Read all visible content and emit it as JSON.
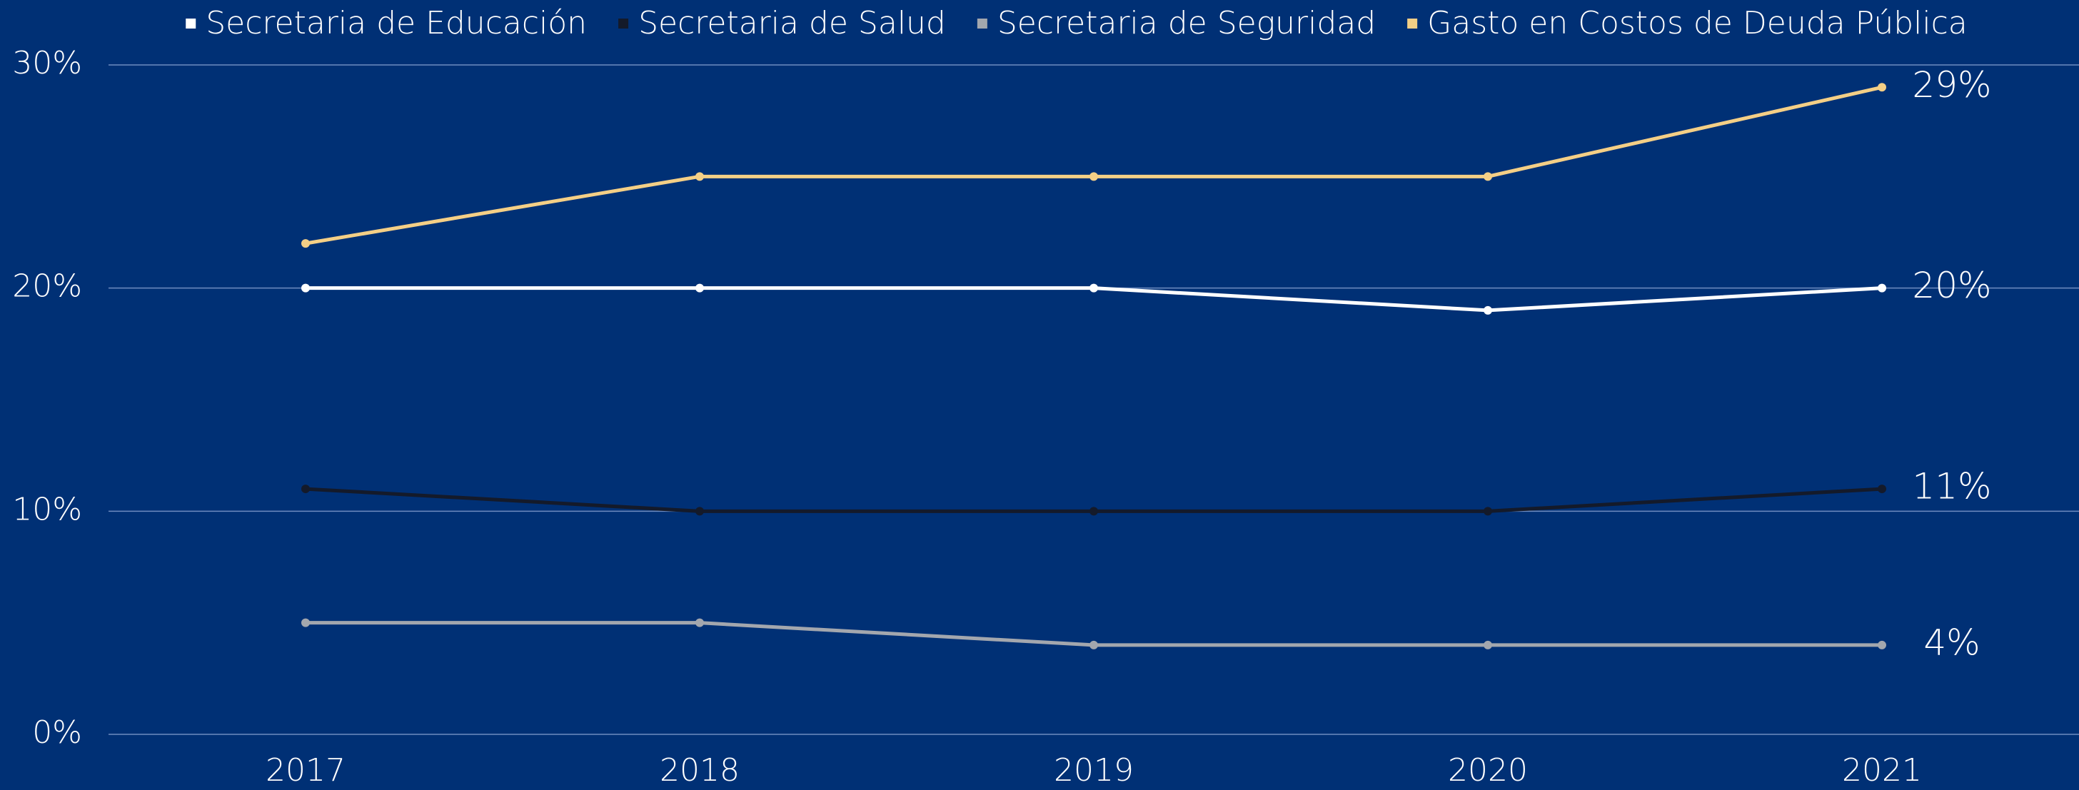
{
  "chart_data": {
    "type": "line",
    "categories": [
      "2017",
      "2018",
      "2019",
      "2020",
      "2021"
    ],
    "series": [
      {
        "name": "Secretaria de Educación",
        "color": "#ffffff",
        "values": [
          20,
          20,
          20,
          19,
          20
        ],
        "value_labels": [
          null,
          null,
          null,
          null,
          "20%"
        ]
      },
      {
        "name": "Secretaria de Salud",
        "color": "#141a2a",
        "values": [
          11,
          10,
          10,
          10,
          11
        ],
        "value_labels": [
          null,
          null,
          null,
          null,
          "11%"
        ]
      },
      {
        "name": "Secretaria de Seguridad",
        "color": "#a3a7ae",
        "values": [
          5,
          5,
          4,
          4,
          4
        ],
        "value_labels": [
          null,
          null,
          null,
          null,
          "4%"
        ]
      },
      {
        "name": "Gasto en Costos de Deuda Pública",
        "color": "#f4cf86",
        "values": [
          22,
          25,
          25,
          25,
          29
        ],
        "value_labels": [
          null,
          null,
          null,
          null,
          "29%"
        ]
      }
    ],
    "ylim": [
      0,
      30
    ],
    "yticks": [
      {
        "value": 0,
        "label": "0%"
      },
      {
        "value": 10,
        "label": "10%"
      },
      {
        "value": 20,
        "label": "20%"
      },
      {
        "value": 30,
        "label": "30%"
      }
    ],
    "grid": true,
    "legend": "top"
  }
}
